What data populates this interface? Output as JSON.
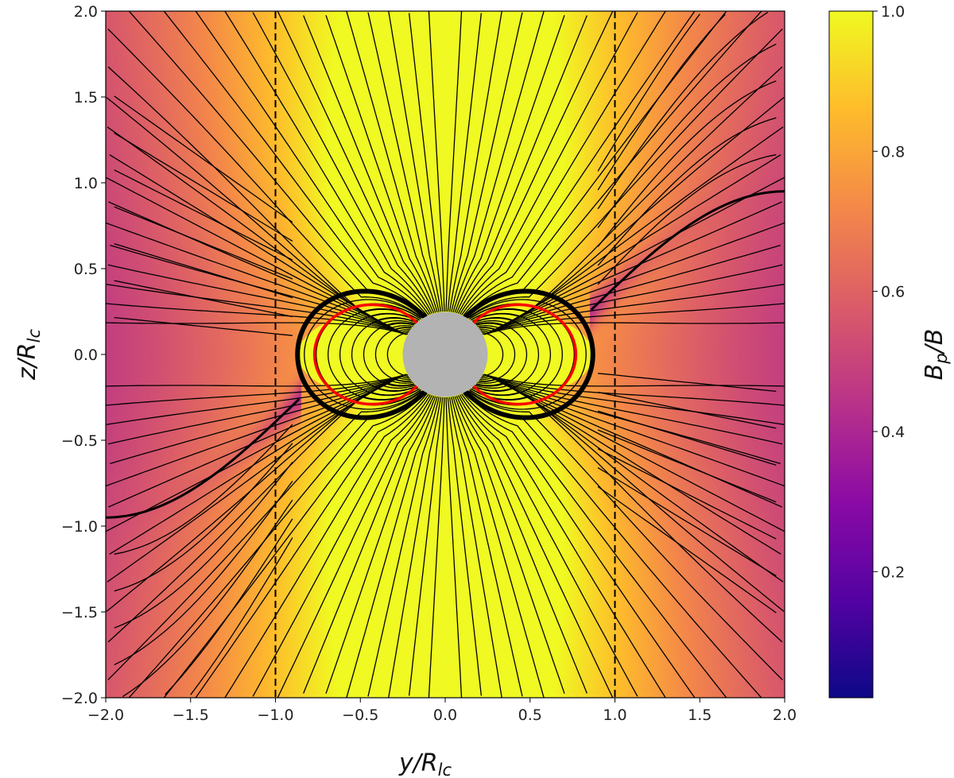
{
  "chart_data": {
    "type": "heatmap",
    "overlay": "streamlines",
    "title": "",
    "xlabel": {
      "main": "y/R",
      "sub": "lc"
    },
    "ylabel": {
      "main": "z/R",
      "sub": "lc"
    },
    "xlim": [
      -2.0,
      2.0
    ],
    "ylim": [
      -2.0,
      2.0
    ],
    "xticks": [
      "−2.0",
      "−1.5",
      "−1.0",
      "−0.5",
      "0.0",
      "0.5",
      "1.0",
      "1.5",
      "2.0"
    ],
    "yticks": [
      "−2.0",
      "−1.5",
      "−1.0",
      "−0.5",
      "0.0",
      "0.5",
      "1.0",
      "1.5",
      "2.0"
    ],
    "xtick_values": [
      -2,
      -1.5,
      -1,
      -0.5,
      0,
      0.5,
      1,
      1.5,
      2
    ],
    "ytick_values": [
      -2,
      -1.5,
      -1,
      -0.5,
      0,
      0.5,
      1,
      1.5,
      2
    ],
    "colorbar": {
      "label": {
        "main": "B",
        "sub": "p",
        "tail": "/B"
      },
      "colormap": "plasma",
      "range": [
        0.02,
        1.0
      ],
      "ticks": [
        "0.2",
        "0.4",
        "0.6",
        "0.8",
        "1.0"
      ],
      "tick_values": [
        0.2,
        0.4,
        0.6,
        0.8,
        1.0
      ]
    },
    "light_cylinder_lines": [
      -1.0,
      1.0
    ],
    "star_radius": 0.25,
    "star_color": "#b3b3b3",
    "separatrix_color": "#ff0000",
    "closed_zone_extent": 0.85,
    "streamline_color": "#000000",
    "grid": false
  }
}
